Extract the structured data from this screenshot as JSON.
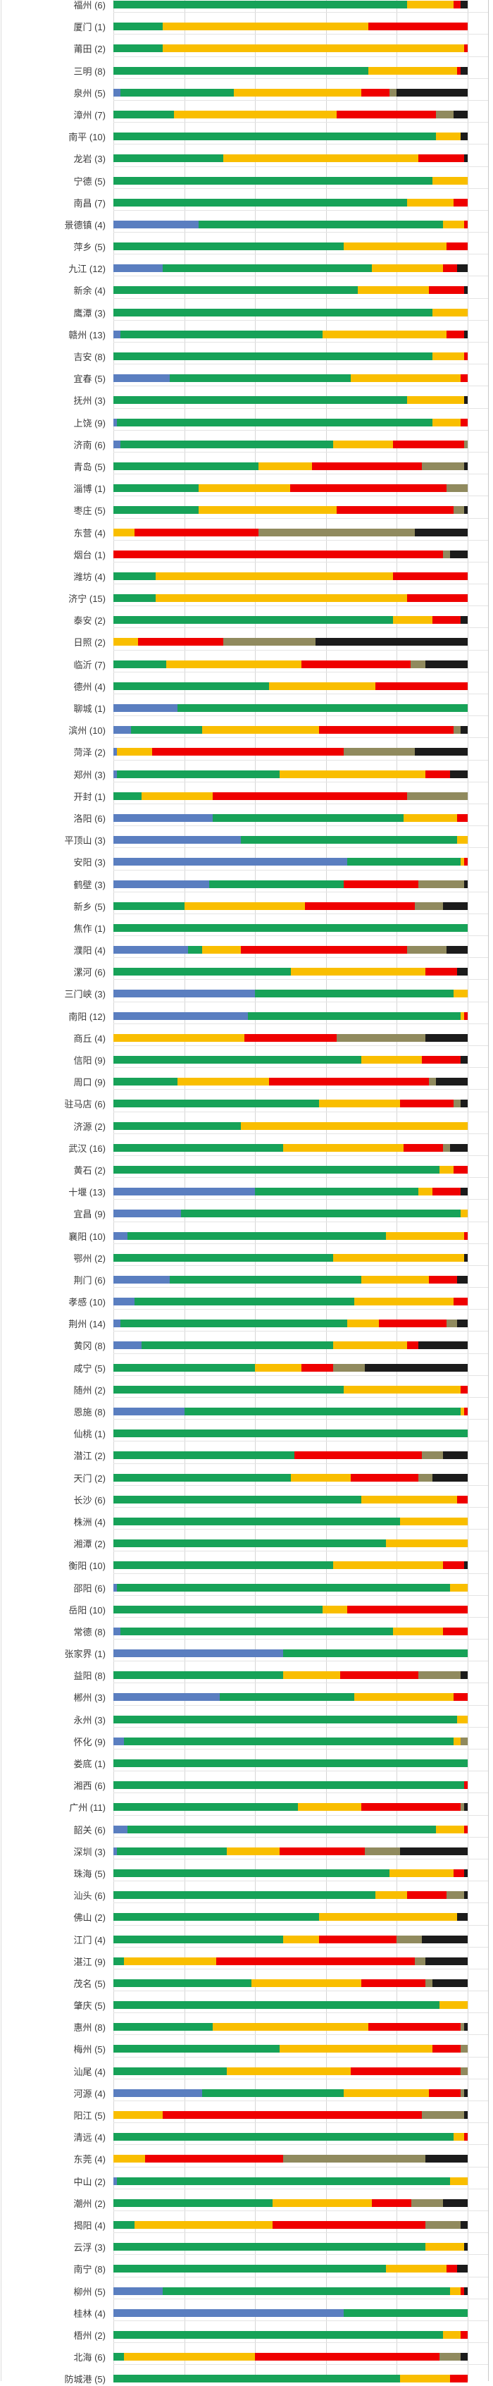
{
  "chart_data": {
    "type": "bar",
    "variant": "horizontal-100pct-stacked",
    "title": "",
    "xlabel": "",
    "ylabel": "",
    "x_axis": {
      "min": 0,
      "max": 100,
      "ticks": [
        0,
        20,
        40,
        60,
        80,
        100
      ],
      "grid": true
    },
    "legend_position": "none",
    "series_order": [
      "b",
      "g",
      "y",
      "r",
      "o",
      "k"
    ],
    "color_names": {
      "b": "blue",
      "g": "green",
      "y": "yellow",
      "r": "red",
      "o": "olive",
      "k": "black"
    },
    "colors": {
      "b": "#5A7EC0",
      "g": "#17A258",
      "y": "#F9BE00",
      "r": "#EF0000",
      "o": "#908A5E",
      "k": "#1B1B1B"
    },
    "grid_color": "#d6d6d6",
    "label_color": "#3b3b3b",
    "rows": [
      {
        "city": "福州",
        "n": 6,
        "seg": {
          "g": 83,
          "y": 13,
          "r": 2,
          "k": 2
        }
      },
      {
        "city": "厦门",
        "n": 1,
        "seg": {
          "g": 14,
          "y": 58,
          "r": 28
        }
      },
      {
        "city": "莆田",
        "n": 2,
        "seg": {
          "g": 14,
          "y": 85,
          "r": 1
        }
      },
      {
        "city": "三明",
        "n": 8,
        "seg": {
          "g": 72,
          "y": 25,
          "r": 1,
          "k": 2
        }
      },
      {
        "city": "泉州",
        "n": 5,
        "seg": {
          "b": 2,
          "g": 32,
          "y": 36,
          "r": 8,
          "o": 2,
          "k": 20
        }
      },
      {
        "city": "漳州",
        "n": 7,
        "seg": {
          "g": 17,
          "y": 46,
          "r": 28,
          "o": 5,
          "k": 4
        }
      },
      {
        "city": "南平",
        "n": 10,
        "seg": {
          "g": 91,
          "y": 7,
          "k": 2
        }
      },
      {
        "city": "龙岩",
        "n": 3,
        "seg": {
          "g": 31,
          "y": 55,
          "r": 13,
          "k": 1
        }
      },
      {
        "city": "宁德",
        "n": 5,
        "seg": {
          "g": 90,
          "y": 10
        }
      },
      {
        "city": "南昌",
        "n": 7,
        "seg": {
          "g": 83,
          "y": 13,
          "r": 4
        }
      },
      {
        "city": "景德镇",
        "n": 4,
        "seg": {
          "b": 24,
          "g": 69,
          "y": 6,
          "r": 1
        }
      },
      {
        "city": "萍乡",
        "n": 5,
        "seg": {
          "g": 65,
          "y": 29,
          "r": 6
        }
      },
      {
        "city": "九江",
        "n": 12,
        "seg": {
          "b": 14,
          "g": 59,
          "y": 20,
          "r": 4,
          "k": 3
        }
      },
      {
        "city": "新余",
        "n": 4,
        "seg": {
          "g": 69,
          "y": 20,
          "r": 10,
          "k": 1
        }
      },
      {
        "city": "鹰潭",
        "n": 3,
        "seg": {
          "g": 90,
          "y": 10
        }
      },
      {
        "city": "赣州",
        "n": 13,
        "seg": {
          "b": 2,
          "g": 57,
          "y": 35,
          "r": 5,
          "k": 1
        }
      },
      {
        "city": "吉安",
        "n": 8,
        "seg": {
          "g": 90,
          "y": 9,
          "r": 1
        }
      },
      {
        "city": "宜春",
        "n": 5,
        "seg": {
          "b": 16,
          "g": 51,
          "y": 31,
          "r": 2
        }
      },
      {
        "city": "抚州",
        "n": 3,
        "seg": {
          "g": 83,
          "y": 16,
          "k": 1
        }
      },
      {
        "city": "上饶",
        "n": 9,
        "seg": {
          "b": 1,
          "g": 89,
          "y": 8,
          "r": 2
        }
      },
      {
        "city": "济南",
        "n": 6,
        "seg": {
          "b": 2,
          "g": 60,
          "y": 17,
          "r": 20,
          "o": 1
        }
      },
      {
        "city": "青岛",
        "n": 5,
        "seg": {
          "g": 41,
          "y": 15,
          "r": 31,
          "o": 12,
          "k": 1
        }
      },
      {
        "city": "淄博",
        "n": 1,
        "seg": {
          "g": 24,
          "y": 26,
          "r": 44,
          "o": 6
        }
      },
      {
        "city": "枣庄",
        "n": 5,
        "seg": {
          "g": 24,
          "y": 39,
          "r": 33,
          "o": 3,
          "k": 1
        }
      },
      {
        "city": "东营",
        "n": 4,
        "seg": {
          "y": 6,
          "r": 35,
          "o": 44,
          "k": 15
        }
      },
      {
        "city": "烟台",
        "n": 1,
        "seg": {
          "r": 93,
          "o": 2,
          "k": 5
        }
      },
      {
        "city": "潍坊",
        "n": 4,
        "seg": {
          "g": 12,
          "y": 67,
          "r": 21
        }
      },
      {
        "city": "济宁",
        "n": 15,
        "seg": {
          "g": 12,
          "y": 71,
          "r": 17
        }
      },
      {
        "city": "泰安",
        "n": 2,
        "seg": {
          "g": 79,
          "y": 11,
          "r": 8,
          "k": 2
        }
      },
      {
        "city": "日照",
        "n": 2,
        "seg": {
          "y": 7,
          "r": 24,
          "o": 26,
          "k": 43
        }
      },
      {
        "city": "临沂",
        "n": 7,
        "seg": {
          "g": 15,
          "y": 38,
          "r": 31,
          "o": 4,
          "k": 12
        }
      },
      {
        "city": "德州",
        "n": 4,
        "seg": {
          "g": 44,
          "y": 30,
          "r": 26
        }
      },
      {
        "city": "聊城",
        "n": 1,
        "seg": {
          "b": 18,
          "g": 82
        }
      },
      {
        "city": "滨州",
        "n": 10,
        "seg": {
          "b": 5,
          "g": 20,
          "y": 33,
          "r": 38,
          "o": 2,
          "k": 2
        }
      },
      {
        "city": "菏泽",
        "n": 2,
        "seg": {
          "b": 1,
          "y": 10,
          "r": 54,
          "o": 20,
          "k": 15
        }
      },
      {
        "city": "郑州",
        "n": 3,
        "seg": {
          "b": 1,
          "g": 46,
          "y": 41,
          "r": 7,
          "k": 5
        }
      },
      {
        "city": "开封",
        "n": 1,
        "seg": {
          "g": 8,
          "y": 20,
          "r": 55,
          "o": 17
        }
      },
      {
        "city": "洛阳",
        "n": 6,
        "seg": {
          "b": 28,
          "g": 54,
          "y": 15,
          "r": 3
        }
      },
      {
        "city": "平顶山",
        "n": 3,
        "seg": {
          "b": 36,
          "g": 61,
          "y": 3
        }
      },
      {
        "city": "安阳",
        "n": 3,
        "seg": {
          "b": 66,
          "g": 32,
          "y": 1,
          "r": 1
        }
      },
      {
        "city": "鹤壁",
        "n": 3,
        "seg": {
          "b": 27,
          "g": 38,
          "r": 21,
          "o": 13,
          "k": 1
        }
      },
      {
        "city": "新乡",
        "n": 5,
        "seg": {
          "g": 20,
          "y": 34,
          "r": 31,
          "o": 8,
          "k": 7
        }
      },
      {
        "city": "焦作",
        "n": 1,
        "seg": {
          "g": 100
        }
      },
      {
        "city": "濮阳",
        "n": 4,
        "seg": {
          "b": 21,
          "g": 4,
          "y": 11,
          "r": 47,
          "o": 11,
          "k": 6
        }
      },
      {
        "city": "漯河",
        "n": 6,
        "seg": {
          "g": 50,
          "y": 38,
          "r": 9,
          "k": 3
        }
      },
      {
        "city": "三门峡",
        "n": 3,
        "seg": {
          "b": 40,
          "g": 56,
          "y": 4
        }
      },
      {
        "city": "南阳",
        "n": 12,
        "seg": {
          "b": 38,
          "g": 60,
          "y": 1,
          "r": 1
        }
      },
      {
        "city": "商丘",
        "n": 4,
        "seg": {
          "y": 37,
          "r": 26,
          "o": 25,
          "k": 12
        }
      },
      {
        "city": "信阳",
        "n": 9,
        "seg": {
          "g": 70,
          "y": 17,
          "r": 11,
          "k": 2
        }
      },
      {
        "city": "周口",
        "n": 9,
        "seg": {
          "g": 18,
          "y": 26,
          "r": 45,
          "o": 2,
          "k": 9
        }
      },
      {
        "city": "驻马店",
        "n": 6,
        "seg": {
          "g": 58,
          "y": 23,
          "r": 15,
          "o": 2,
          "k": 2
        }
      },
      {
        "city": "济源",
        "n": 2,
        "seg": {
          "g": 36,
          "y": 64
        }
      },
      {
        "city": "武汉",
        "n": 16,
        "seg": {
          "g": 48,
          "y": 34,
          "r": 11,
          "o": 2,
          "k": 5
        }
      },
      {
        "city": "黄石",
        "n": 2,
        "seg": {
          "g": 92,
          "y": 4,
          "r": 4
        }
      },
      {
        "city": "十堰",
        "n": 13,
        "seg": {
          "b": 40,
          "g": 46,
          "y": 4,
          "r": 8,
          "k": 2
        }
      },
      {
        "city": "宜昌",
        "n": 9,
        "seg": {
          "b": 19,
          "g": 79,
          "y": 2
        }
      },
      {
        "city": "襄阳",
        "n": 10,
        "seg": {
          "b": 4,
          "g": 73,
          "y": 22,
          "r": 1
        }
      },
      {
        "city": "鄂州",
        "n": 2,
        "seg": {
          "g": 62,
          "y": 37,
          "k": 1
        }
      },
      {
        "city": "荆门",
        "n": 6,
        "seg": {
          "b": 16,
          "g": 54,
          "y": 19,
          "r": 8,
          "k": 3
        }
      },
      {
        "city": "孝感",
        "n": 10,
        "seg": {
          "b": 6,
          "g": 62,
          "y": 28,
          "r": 4
        }
      },
      {
        "city": "荆州",
        "n": 14,
        "seg": {
          "b": 2,
          "g": 64,
          "y": 9,
          "r": 19,
          "o": 3,
          "k": 3
        }
      },
      {
        "city": "黄冈",
        "n": 8,
        "seg": {
          "b": 8,
          "g": 54,
          "y": 21,
          "r": 3,
          "k": 14
        }
      },
      {
        "city": "咸宁",
        "n": 5,
        "seg": {
          "g": 40,
          "y": 13,
          "r": 9,
          "o": 9,
          "k": 29
        }
      },
      {
        "city": "随州",
        "n": 2,
        "seg": {
          "g": 65,
          "y": 33,
          "r": 2
        }
      },
      {
        "city": "恩施",
        "n": 8,
        "seg": {
          "b": 20,
          "g": 78,
          "y": 1,
          "r": 1
        }
      },
      {
        "city": "仙桃",
        "n": 1,
        "seg": {
          "g": 100
        }
      },
      {
        "city": "潜江",
        "n": 2,
        "seg": {
          "g": 51,
          "r": 36,
          "o": 6,
          "k": 7
        }
      },
      {
        "city": "天门",
        "n": 2,
        "seg": {
          "g": 50,
          "y": 17,
          "r": 19,
          "o": 4,
          "k": 10
        }
      },
      {
        "city": "长沙",
        "n": 6,
        "seg": {
          "g": 70,
          "y": 27,
          "r": 3
        }
      },
      {
        "city": "株洲",
        "n": 4,
        "seg": {
          "g": 81,
          "y": 19
        }
      },
      {
        "city": "湘潭",
        "n": 2,
        "seg": {
          "g": 77,
          "y": 23
        }
      },
      {
        "city": "衡阳",
        "n": 10,
        "seg": {
          "g": 62,
          "y": 31,
          "r": 6,
          "k": 1
        }
      },
      {
        "city": "邵阳",
        "n": 6,
        "seg": {
          "b": 1,
          "g": 94,
          "y": 5
        }
      },
      {
        "city": "岳阳",
        "n": 10,
        "seg": {
          "g": 59,
          "y": 7,
          "r": 34
        }
      },
      {
        "city": "常德",
        "n": 8,
        "seg": {
          "b": 2,
          "g": 77,
          "y": 14,
          "r": 7
        }
      },
      {
        "city": "张家界",
        "n": 1,
        "seg": {
          "b": 48,
          "g": 52
        }
      },
      {
        "city": "益阳",
        "n": 8,
        "seg": {
          "g": 48,
          "y": 16,
          "r": 22,
          "o": 12,
          "k": 2
        }
      },
      {
        "city": "郴州",
        "n": 3,
        "seg": {
          "b": 30,
          "g": 38,
          "y": 28,
          "r": 4
        }
      },
      {
        "city": "永州",
        "n": 3,
        "seg": {
          "g": 97,
          "y": 3
        }
      },
      {
        "city": "怀化",
        "n": 9,
        "seg": {
          "b": 3,
          "g": 93,
          "y": 2,
          "o": 2
        }
      },
      {
        "city": "娄底",
        "n": 1,
        "seg": {
          "g": 100
        }
      },
      {
        "city": "湘西",
        "n": 6,
        "seg": {
          "g": 99,
          "r": 1
        }
      },
      {
        "city": "广州",
        "n": 11,
        "seg": {
          "g": 52,
          "y": 18,
          "r": 28,
          "o": 1,
          "k": 1
        }
      },
      {
        "city": "韶关",
        "n": 6,
        "seg": {
          "b": 4,
          "g": 87,
          "y": 8,
          "r": 1
        }
      },
      {
        "city": "深圳",
        "n": 3,
        "seg": {
          "b": 1,
          "g": 31,
          "y": 15,
          "r": 24,
          "o": 10,
          "k": 19
        }
      },
      {
        "city": "珠海",
        "n": 5,
        "seg": {
          "g": 78,
          "y": 18,
          "r": 3,
          "k": 1
        }
      },
      {
        "city": "汕头",
        "n": 6,
        "seg": {
          "g": 74,
          "y": 9,
          "r": 11,
          "o": 5,
          "k": 1
        }
      },
      {
        "city": "佛山",
        "n": 2,
        "seg": {
          "g": 58,
          "y": 39,
          "k": 3
        }
      },
      {
        "city": "江门",
        "n": 4,
        "seg": {
          "g": 48,
          "y": 10,
          "r": 22,
          "o": 7,
          "k": 13
        }
      },
      {
        "city": "湛江",
        "n": 9,
        "seg": {
          "g": 3,
          "y": 26,
          "r": 56,
          "o": 3,
          "k": 12
        }
      },
      {
        "city": "茂名",
        "n": 5,
        "seg": {
          "g": 39,
          "y": 31,
          "r": 18,
          "o": 2,
          "k": 10
        }
      },
      {
        "city": "肇庆",
        "n": 5,
        "seg": {
          "g": 92,
          "y": 8
        }
      },
      {
        "city": "惠州",
        "n": 8,
        "seg": {
          "g": 28,
          "y": 44,
          "r": 26,
          "o": 1,
          "k": 1
        }
      },
      {
        "city": "梅州",
        "n": 5,
        "seg": {
          "g": 47,
          "y": 43,
          "r": 8,
          "o": 2
        }
      },
      {
        "city": "汕尾",
        "n": 4,
        "seg": {
          "g": 32,
          "y": 35,
          "r": 31,
          "o": 2
        }
      },
      {
        "city": "河源",
        "n": 4,
        "seg": {
          "b": 25,
          "g": 40,
          "y": 24,
          "r": 9,
          "o": 1,
          "k": 1
        }
      },
      {
        "city": "阳江",
        "n": 5,
        "seg": {
          "y": 14,
          "r": 73,
          "o": 12,
          "k": 1
        }
      },
      {
        "city": "清远",
        "n": 4,
        "seg": {
          "g": 96,
          "y": 3,
          "r": 1
        }
      },
      {
        "city": "东莞",
        "n": 4,
        "seg": {
          "y": 9,
          "r": 39,
          "o": 40,
          "k": 12
        }
      },
      {
        "city": "中山",
        "n": 2,
        "seg": {
          "b": 1,
          "g": 94,
          "y": 5
        }
      },
      {
        "city": "潮州",
        "n": 2,
        "seg": {
          "g": 45,
          "y": 28,
          "r": 11,
          "o": 9,
          "k": 7
        }
      },
      {
        "city": "揭阳",
        "n": 4,
        "seg": {
          "g": 6,
          "y": 39,
          "r": 43,
          "o": 10,
          "k": 2
        }
      },
      {
        "city": "云浮",
        "n": 3,
        "seg": {
          "g": 88,
          "y": 11,
          "k": 1
        }
      },
      {
        "city": "南宁",
        "n": 8,
        "seg": {
          "g": 77,
          "y": 17,
          "r": 3,
          "k": 3
        }
      },
      {
        "city": "柳州",
        "n": 5,
        "seg": {
          "b": 14,
          "g": 81,
          "y": 3,
          "r": 1,
          "k": 1
        }
      },
      {
        "city": "桂林",
        "n": 4,
        "seg": {
          "b": 65,
          "g": 35
        }
      },
      {
        "city": "梧州",
        "n": 2,
        "seg": {
          "g": 93,
          "y": 5,
          "r": 2
        }
      },
      {
        "city": "北海",
        "n": 6,
        "seg": {
          "g": 3,
          "y": 37,
          "r": 52,
          "o": 6,
          "k": 2
        }
      },
      {
        "city": "防城港",
        "n": 5,
        "seg": {
          "g": 81,
          "y": 14,
          "r": 5
        }
      }
    ]
  }
}
